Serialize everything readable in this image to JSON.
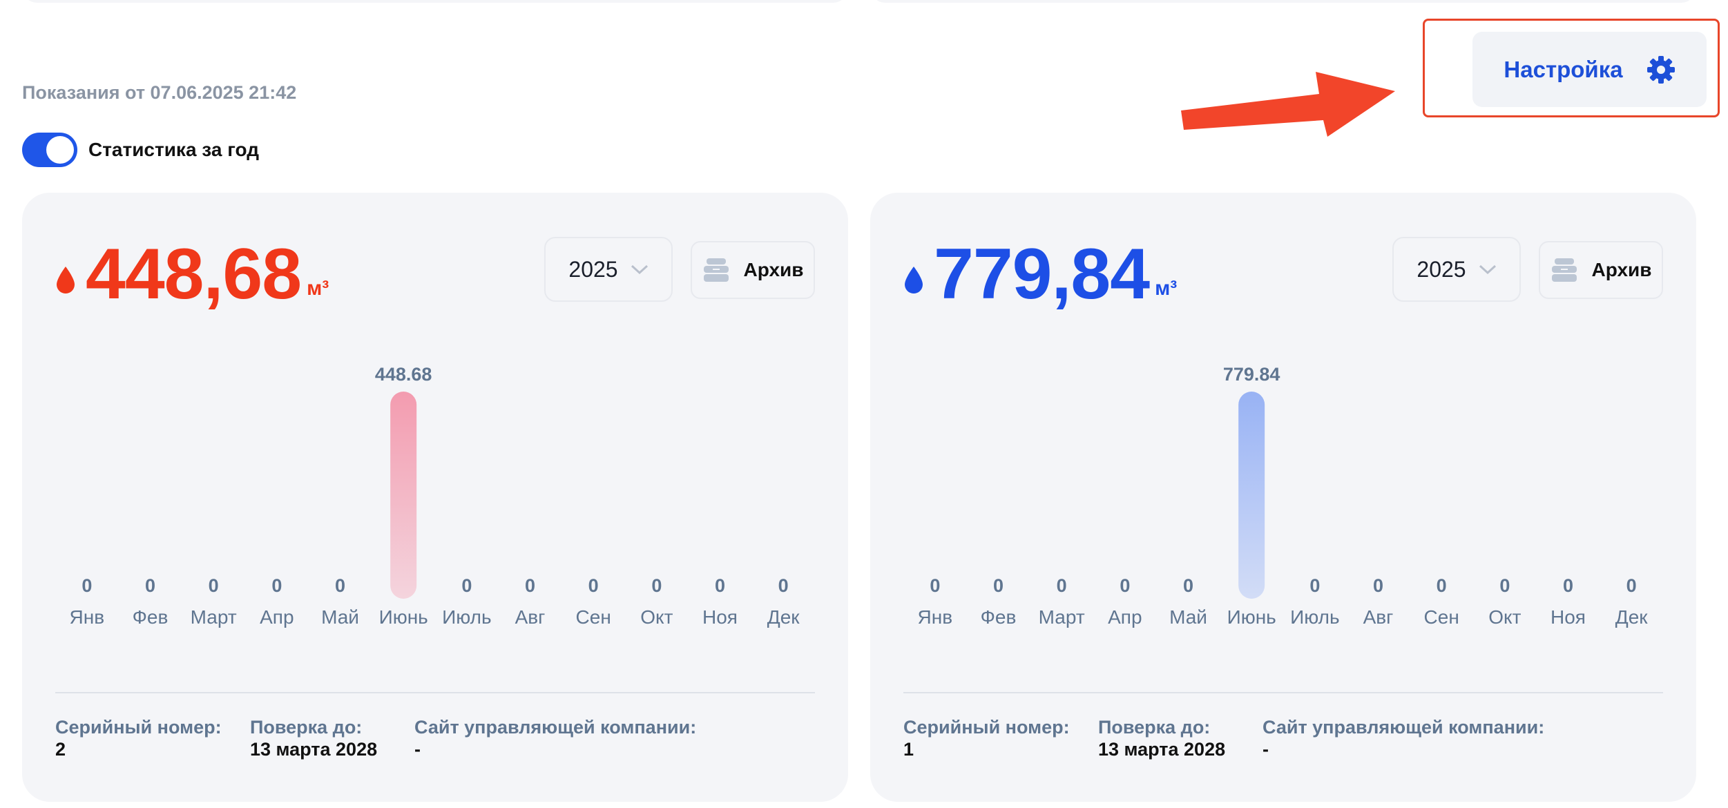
{
  "readings_date": "Показания от 07.06.2025 21:42",
  "yearly_stats_toggle": {
    "label": "Статистика за год",
    "on": true
  },
  "settings": {
    "label": "Настройка",
    "icon": "gear-icon"
  },
  "accent_colors": {
    "hot": "#f0381a",
    "cold": "#1d4fe6",
    "highlight_frame": "#e8462a"
  },
  "meters": [
    {
      "total_value": "448,68",
      "unit": "м³",
      "year": "2025",
      "archive_label": "Архив",
      "serial_label": "Серийный номер:",
      "serial_value": "2",
      "check_label": "Поверка до:",
      "check_value": "13 марта 2028",
      "site_label": "Сайт управляющей компании:",
      "site_value": "-"
    },
    {
      "total_value": "779,84",
      "unit": "м³",
      "year": "2025",
      "archive_label": "Архив",
      "serial_label": "Серийный номер:",
      "serial_value": "1",
      "check_label": "Поверка до:",
      "check_value": "13 марта 2028",
      "site_label": "Сайт управляющей компании:",
      "site_value": "-"
    }
  ],
  "chart_data": [
    {
      "type": "bar",
      "categories": [
        "Янв",
        "Фев",
        "Март",
        "Апр",
        "Май",
        "Июнь",
        "Июль",
        "Авг",
        "Сен",
        "Окт",
        "Ноя",
        "Дек"
      ],
      "values": [
        0,
        0,
        0,
        0,
        0,
        448.68,
        0,
        0,
        0,
        0,
        0,
        0
      ],
      "value_labels": [
        "0",
        "0",
        "0",
        "0",
        "0",
        "448.68",
        "0",
        "0",
        "0",
        "0",
        "0",
        "0"
      ],
      "ylim": [
        0,
        448.68
      ],
      "color": "#f2607f"
    },
    {
      "type": "bar",
      "categories": [
        "Янв",
        "Фев",
        "Март",
        "Апр",
        "Май",
        "Июнь",
        "Июль",
        "Авг",
        "Сен",
        "Окт",
        "Ноя",
        "Дек"
      ],
      "values": [
        0,
        0,
        0,
        0,
        0,
        779.84,
        0,
        0,
        0,
        0,
        0,
        0
      ],
      "value_labels": [
        "0",
        "0",
        "0",
        "0",
        "0",
        "779.84",
        "0",
        "0",
        "0",
        "0",
        "0",
        "0"
      ],
      "ylim": [
        0,
        779.84
      ],
      "color": "#5b86f2"
    }
  ]
}
